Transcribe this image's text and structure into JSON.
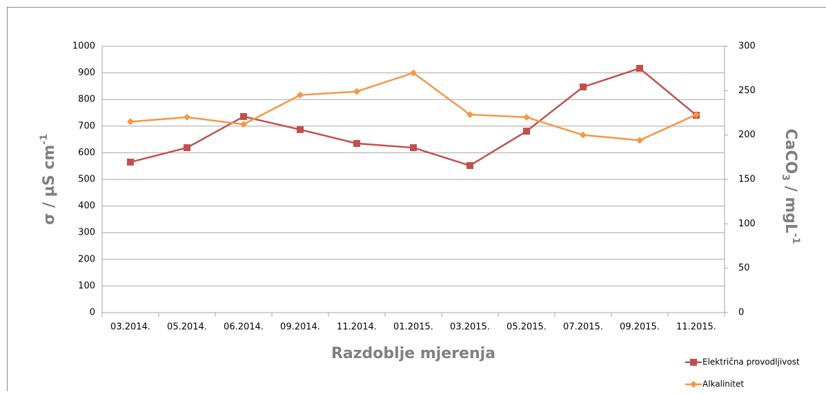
{
  "chart_data": {
    "type": "line",
    "xlabel": "Razdoblje mjerenja",
    "ylabel": {
      "text": "σ / µS cm",
      "sup": "-1"
    },
    "y2label": {
      "a": "CaCO",
      "sub": "3",
      "b": " / mgL",
      "sup": "-1"
    },
    "categories": [
      "03.2014.",
      "05.2014.",
      "06.2014.",
      "09.2014.",
      "11.2014.",
      "01.2015.",
      "03.2015.",
      "05.2015.",
      "07.2015.",
      "09.2015.",
      "11.2015."
    ],
    "series": [
      {
        "name": "Električna provodljivost",
        "color": "#c0504d",
        "marker": "square",
        "values": [
          565,
          619,
          736,
          687,
          635,
          619,
          552,
          681,
          847,
          917,
          741
        ]
      },
      {
        "name": "Alkalinitet",
        "color": "#f79646",
        "marker": "diamond",
        "axis": "y2",
        "values": [
          215,
          220,
          212,
          245,
          249,
          270,
          223,
          220,
          200,
          194,
          223
        ]
      }
    ],
    "ylim": [
      0,
      1000
    ],
    "yticks": [
      0,
      100,
      200,
      300,
      400,
      500,
      600,
      700,
      800,
      900,
      1000
    ],
    "y2lim": [
      0,
      300
    ],
    "y2ticks": [
      0,
      50,
      100,
      150,
      200,
      250,
      300
    ],
    "grid": true,
    "legend": "bottom-right"
  }
}
